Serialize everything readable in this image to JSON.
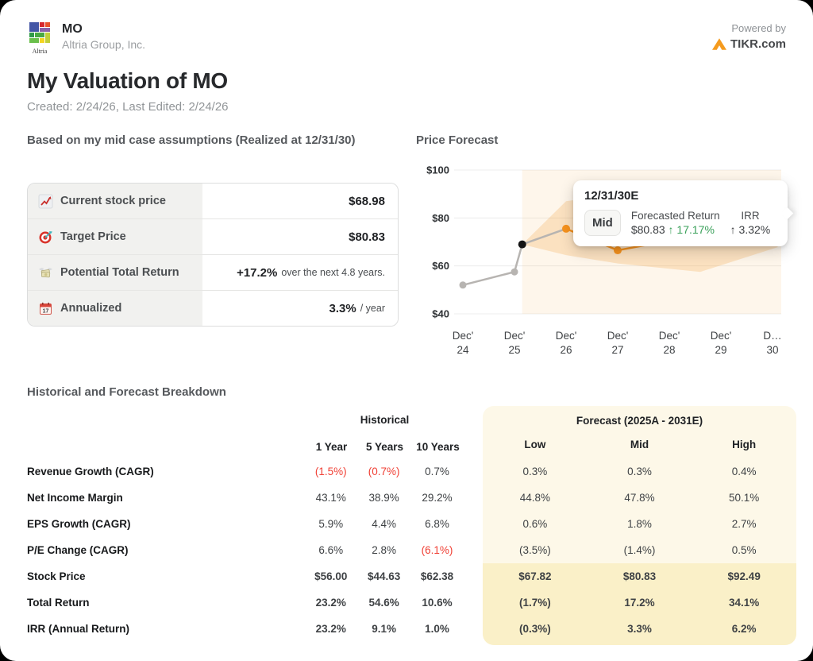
{
  "header": {
    "ticker": "MO",
    "company": "Altria Group, Inc.",
    "logo_caption": "Altria",
    "powered_by": "Powered by",
    "brand": "TIKR.com"
  },
  "title": "My Valuation of MO",
  "subtitle": "Created: 2/24/26, Last Edited: 2/24/26",
  "summary": {
    "heading": "Based on my mid case assumptions (Realized at 12/31/30)",
    "rows": [
      {
        "icon": "stock-chart-icon",
        "label": "Current stock price",
        "value": "$68.98",
        "suffix": ""
      },
      {
        "icon": "target-icon",
        "label": "Target Price",
        "value": "$80.83",
        "suffix": ""
      },
      {
        "icon": "money-wings-icon",
        "label": "Potential Total Return",
        "value": "+17.2%",
        "suffix": "over the next 4.8 years."
      },
      {
        "icon": "calendar-icon",
        "label": "Annualized",
        "value": "3.3%",
        "suffix": "/ year"
      }
    ]
  },
  "chart_data": {
    "type": "line",
    "title": "Price Forecast",
    "ylim": [
      40,
      100
    ],
    "y_ticks": [
      100,
      80,
      60,
      40
    ],
    "y_tick_labels": [
      "$100",
      "$80",
      "$60",
      "$40"
    ],
    "x_categories": [
      "Dec' 24",
      "Dec' 25",
      "Dec' 26",
      "Dec' 27",
      "Dec' 28",
      "Dec' 29",
      "Dec' 30"
    ],
    "x_tick_lines": [
      [
        "Dec'",
        "24"
      ],
      [
        "Dec'",
        "25"
      ],
      [
        "Dec'",
        "26"
      ],
      [
        "Dec'",
        "27"
      ],
      [
        "Dec'",
        "28"
      ],
      [
        "Dec'",
        "29"
      ],
      [
        "D…",
        "30"
      ]
    ],
    "grid": true,
    "series": [
      {
        "name": "Historical price",
        "color": "#b7b4b1",
        "points": [
          {
            "x": 0,
            "y": 52
          },
          {
            "x": 1,
            "y": 57.5
          },
          {
            "x": 1.15,
            "y": 68.98
          },
          {
            "x": 2,
            "y": 75.5
          }
        ]
      },
      {
        "name": "Mid forecast",
        "color": "#f6921e",
        "points": [
          {
            "x": 2,
            "y": 75.5
          },
          {
            "x": 3,
            "y": 66.5
          },
          {
            "x": 4,
            "y": 70.5
          },
          {
            "x": 5,
            "y": 76.5
          },
          {
            "x": 6.1,
            "y": 80.83
          }
        ]
      }
    ],
    "band": {
      "name": "Low-High forecast range",
      "upper": [
        {
          "x": 1.15,
          "y": 68.98
        },
        {
          "x": 2,
          "y": 87
        },
        {
          "x": 3.2,
          "y": 90.5
        },
        {
          "x": 6.1,
          "y": 92.49
        }
      ],
      "lower": [
        {
          "x": 1.15,
          "y": 68.98
        },
        {
          "x": 2,
          "y": 64.5
        },
        {
          "x": 3,
          "y": 61
        },
        {
          "x": 4.6,
          "y": 57.5
        },
        {
          "x": 6.1,
          "y": 67.82
        }
      ]
    },
    "dots": [
      {
        "x": 0,
        "y": 52,
        "kind": "gray"
      },
      {
        "x": 1,
        "y": 57.5,
        "kind": "gray"
      },
      {
        "x": 1.15,
        "y": 68.98,
        "kind": "black"
      },
      {
        "x": 2,
        "y": 75.5,
        "kind": "orange"
      },
      {
        "x": 3,
        "y": 66.5,
        "kind": "orange"
      },
      {
        "x": 6.1,
        "y": 80.83,
        "kind": "orange"
      }
    ],
    "forecast_region_start_x": 1.15
  },
  "tooltip": {
    "title": "12/31/30E",
    "badge": "Mid",
    "col1_label": "Forecasted Return",
    "col1_value": "$80.83",
    "col1_change": "↑ 17.17%",
    "col2_label": "IRR",
    "col2_change": "↑ 3.32%"
  },
  "breakdown": {
    "heading": "Historical and Forecast Breakdown",
    "historical_header": "Historical",
    "historical_cols": [
      "1 Year",
      "5 Years",
      "10 Years"
    ],
    "forecast_header": "Forecast (2025A - 2031E)",
    "forecast_cols": [
      "Low",
      "Mid",
      "High"
    ],
    "rows": [
      {
        "label": "Revenue Growth (CAGR)",
        "hist": [
          "(1.5%)",
          "(0.7%)",
          "0.7%"
        ],
        "forecast": [
          "0.3%",
          "0.3%",
          "0.4%"
        ],
        "strong": false
      },
      {
        "label": "Net Income Margin",
        "hist": [
          "43.1%",
          "38.9%",
          "29.2%"
        ],
        "forecast": [
          "44.8%",
          "47.8%",
          "50.1%"
        ],
        "strong": false
      },
      {
        "label": "EPS Growth (CAGR)",
        "hist": [
          "5.9%",
          "4.4%",
          "6.8%"
        ],
        "forecast": [
          "0.6%",
          "1.8%",
          "2.7%"
        ],
        "strong": false
      },
      {
        "label": "P/E Change (CAGR)",
        "hist": [
          "6.6%",
          "2.8%",
          "(6.1%)"
        ],
        "forecast": [
          "(3.5%)",
          "(1.4%)",
          "0.5%"
        ],
        "strong": false
      },
      {
        "label": "Stock Price",
        "hist": [
          "$56.00",
          "$44.63",
          "$62.38"
        ],
        "forecast": [
          "$67.82",
          "$80.83",
          "$92.49"
        ],
        "strong": true
      },
      {
        "label": "Total Return",
        "hist": [
          "23.2%",
          "54.6%",
          "10.6%"
        ],
        "forecast": [
          "(1.7%)",
          "17.2%",
          "34.1%"
        ],
        "strong": true
      },
      {
        "label": "IRR (Annual Return)",
        "hist": [
          "23.2%",
          "9.1%",
          "1.0%"
        ],
        "forecast": [
          "(0.3%)",
          "3.3%",
          "6.2%"
        ],
        "strong": true
      }
    ]
  },
  "colors": {
    "accent_orange": "#f6921e",
    "brand_orange": "#f59b1e",
    "negative_red": "#f04035",
    "positive_green": "#3aa05a",
    "forecast_card_bg": "#fdf8e8",
    "forecast_highlight_bg": "#faf0c8"
  }
}
